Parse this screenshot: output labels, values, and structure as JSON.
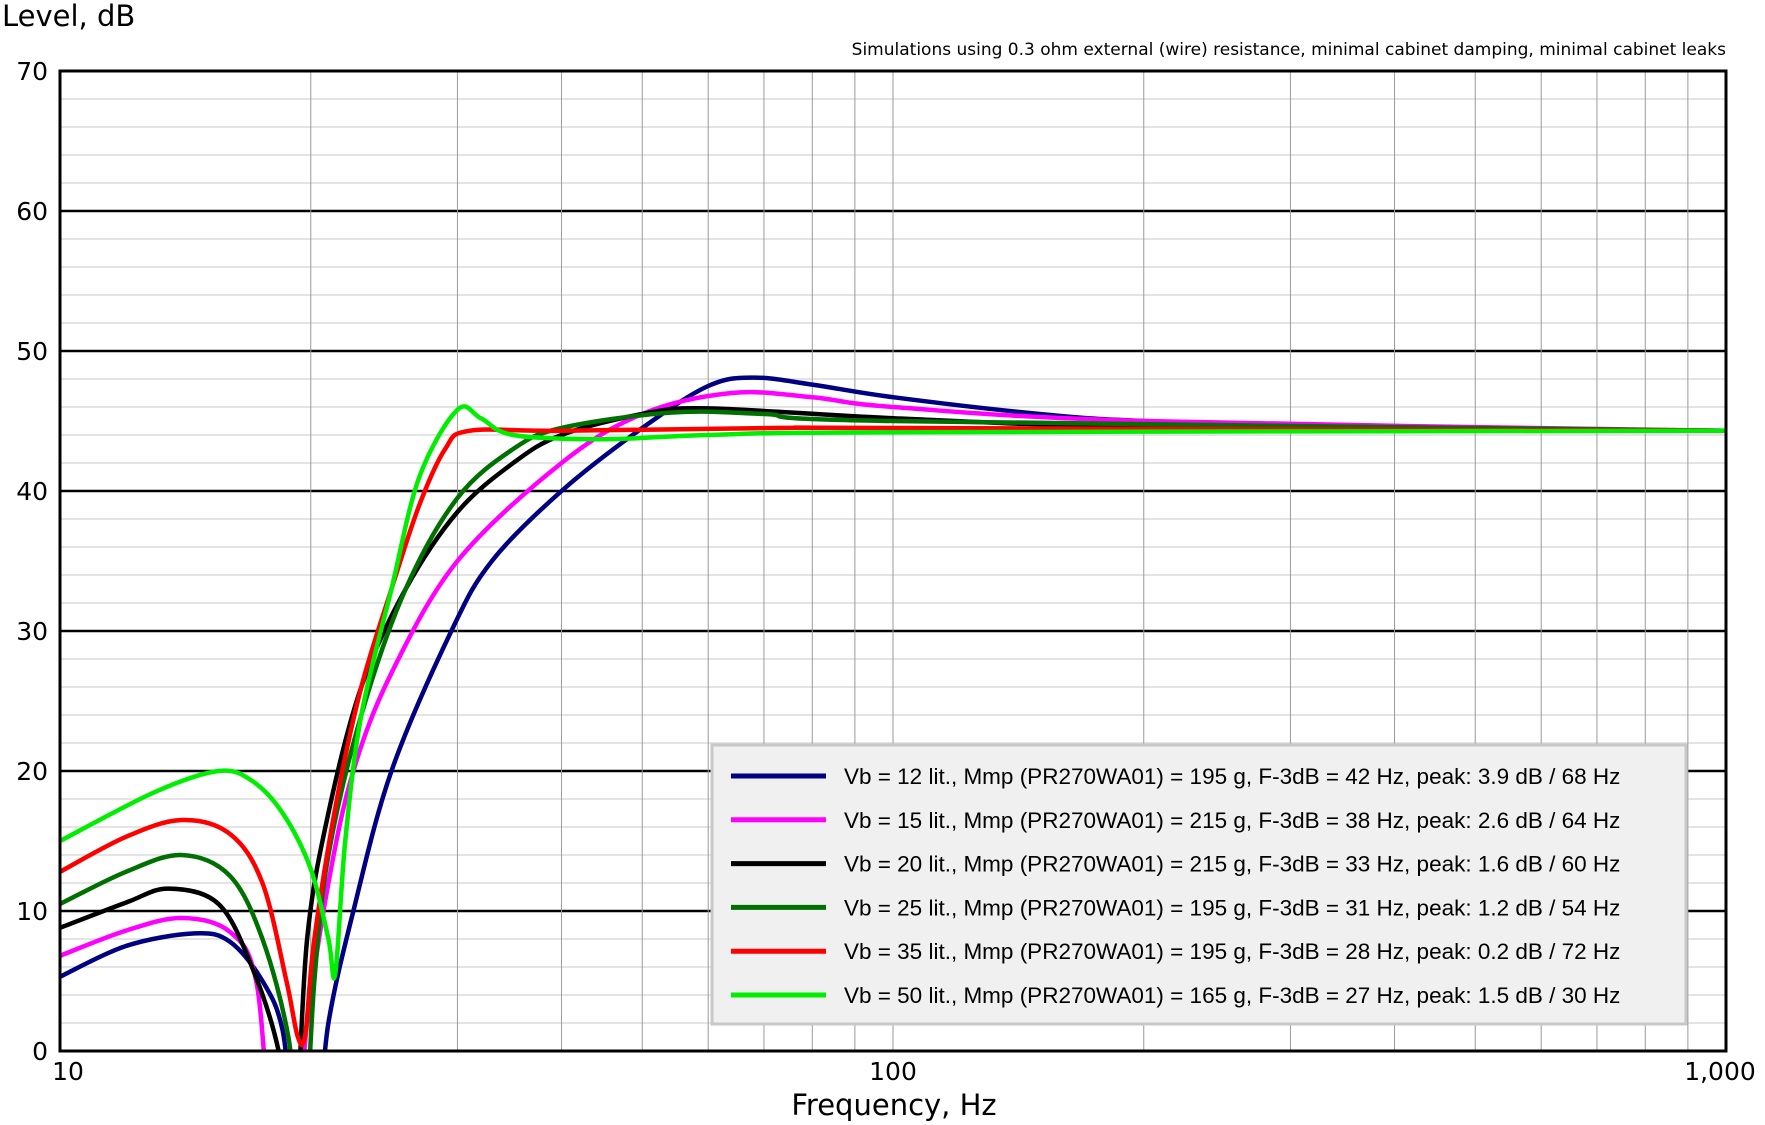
{
  "chart_data": {
    "type": "line",
    "title": "",
    "annotation": "Simulations using 0.3 ohm external (wire) resistance, minimal cabinet damping, minimal cabinet leaks",
    "xlabel": "Frequency, Hz",
    "ylabel": "Level, dB",
    "xscale": "log",
    "xlim": [
      10,
      1000
    ],
    "ylim": [
      0,
      70
    ],
    "x_ticks": [
      {
        "v": 10,
        "label": "10"
      },
      {
        "v": 100,
        "label": "100"
      },
      {
        "v": 1000,
        "label": "1,000"
      }
    ],
    "y_ticks": [
      {
        "v": 0,
        "label": "0"
      },
      {
        "v": 10,
        "label": "10"
      },
      {
        "v": 20,
        "label": "20"
      },
      {
        "v": 30,
        "label": "30"
      },
      {
        "v": 40,
        "label": "40"
      },
      {
        "v": 50,
        "label": "50"
      },
      {
        "v": 60,
        "label": "60"
      },
      {
        "v": 70,
        "label": "70"
      }
    ],
    "grid": true,
    "legend_position": "bottom-right",
    "series": [
      {
        "name": "Vb = 12 lit., Mmp (PR270WA01) = 195 g, F-3dB = 42 Hz, peak: 3.9 dB / 68 Hz",
        "color": "#000080",
        "points": [
          [
            10,
            5.3
          ],
          [
            12,
            7.5
          ],
          [
            14.5,
            8.4
          ],
          [
            16,
            7.8
          ],
          [
            17.5,
            5
          ],
          [
            18.5,
            1.5
          ],
          [
            19.2,
            -6
          ],
          [
            20.3,
            -6
          ],
          [
            21,
            2
          ],
          [
            22.5,
            10
          ],
          [
            25,
            20
          ],
          [
            29.5,
            30
          ],
          [
            33,
            35
          ],
          [
            40,
            40
          ],
          [
            50,
            44.5
          ],
          [
            60,
            47.5
          ],
          [
            68,
            48.1
          ],
          [
            80,
            47.6
          ],
          [
            100,
            46.7
          ],
          [
            150,
            45.5
          ],
          [
            200,
            45
          ],
          [
            400,
            44.5
          ],
          [
            1000,
            44.3
          ]
        ]
      },
      {
        "name": "Vb = 15 lit., Mmp (PR270WA01) = 215 g, F-3dB = 38 Hz, peak: 2.6 dB / 64 Hz",
        "color": "#ff00ff",
        "points": [
          [
            10,
            6.8
          ],
          [
            12,
            8.6
          ],
          [
            14,
            9.5
          ],
          [
            16,
            8.5
          ],
          [
            17.2,
            5
          ],
          [
            18,
            -6
          ],
          [
            19.2,
            -6
          ],
          [
            19.8,
            2
          ],
          [
            21,
            12
          ],
          [
            22.5,
            20
          ],
          [
            25,
            27
          ],
          [
            30,
            35
          ],
          [
            40,
            42
          ],
          [
            50,
            45.5
          ],
          [
            64,
            47
          ],
          [
            80,
            46.7
          ],
          [
            100,
            46
          ],
          [
            200,
            45
          ],
          [
            1000,
            44.3
          ]
        ]
      },
      {
        "name": "Vb = 20 lit., Mmp (PR270WA01) = 215 g, F-3dB = 33 Hz, peak: 1.6 dB / 60 Hz",
        "color": "#000000",
        "points": [
          [
            10,
            8.8
          ],
          [
            12,
            10.6
          ],
          [
            13.5,
            11.6
          ],
          [
            15.5,
            10.5
          ],
          [
            17,
            6
          ],
          [
            18.3,
            0
          ],
          [
            18.8,
            -6
          ],
          [
            19.2,
            -6
          ],
          [
            19.8,
            8
          ],
          [
            21,
            17
          ],
          [
            23,
            26
          ],
          [
            26,
            33
          ],
          [
            30,
            38.5
          ],
          [
            35,
            42
          ],
          [
            40,
            44
          ],
          [
            50,
            45.5
          ],
          [
            60,
            45.9
          ],
          [
            100,
            45.2
          ],
          [
            200,
            44.6
          ],
          [
            1000,
            44.3
          ]
        ]
      },
      {
        "name": "Vb = 25 lit., Mmp (PR270WA01) = 195 g, F-3dB = 31 Hz, peak: 1.2 dB / 54 Hz",
        "color": "#007000",
        "points": [
          [
            10,
            10.5
          ],
          [
            12,
            12.8
          ],
          [
            14,
            14
          ],
          [
            16,
            12.5
          ],
          [
            17.5,
            8
          ],
          [
            18.8,
            1
          ],
          [
            19.3,
            -6
          ],
          [
            19.7,
            -6
          ],
          [
            20.2,
            5
          ],
          [
            21,
            14
          ],
          [
            23,
            24
          ],
          [
            26,
            33
          ],
          [
            30,
            39.5
          ],
          [
            35,
            43
          ],
          [
            40,
            44.5
          ],
          [
            54,
            45.6
          ],
          [
            70,
            45.5
          ],
          [
            100,
            45
          ],
          [
            1000,
            44.3
          ]
        ]
      },
      {
        "name": "Vb = 35 lit., Mmp (PR270WA01) = 195 g, F-3dB = 28 Hz, peak: 0.2 dB / 72 Hz",
        "color": "#ff0000",
        "points": [
          [
            10,
            12.8
          ],
          [
            12,
            15.3
          ],
          [
            14,
            16.5
          ],
          [
            16,
            15.5
          ],
          [
            17.5,
            12
          ],
          [
            18.7,
            5
          ],
          [
            19.3,
            1
          ],
          [
            19.7,
            1.2
          ],
          [
            20.2,
            8
          ],
          [
            21.5,
            18
          ],
          [
            23,
            26
          ],
          [
            25,
            33
          ],
          [
            27,
            39
          ],
          [
            29,
            43
          ],
          [
            31,
            44.3
          ],
          [
            40,
            44.3
          ],
          [
            72,
            44.5
          ],
          [
            100,
            44.5
          ],
          [
            1000,
            44.3
          ]
        ]
      },
      {
        "name": "Vb = 50 lit., Mmp (PR270WA01) = 165 g, F-3dB = 27 Hz, peak: 1.5 dB / 30 Hz",
        "color": "#00ee00",
        "points": [
          [
            10,
            15
          ],
          [
            13,
            18.5
          ],
          [
            15.5,
            20
          ],
          [
            17,
            19.3
          ],
          [
            18.5,
            17
          ],
          [
            20,
            13
          ],
          [
            21,
            8
          ],
          [
            21.4,
            5.5
          ],
          [
            22,
            15
          ],
          [
            23,
            24
          ],
          [
            25,
            33
          ],
          [
            27,
            41
          ],
          [
            30,
            45.8
          ],
          [
            32,
            45.2
          ],
          [
            35,
            44
          ],
          [
            45,
            43.7
          ],
          [
            60,
            44
          ],
          [
            100,
            44.2
          ],
          [
            1000,
            44.3
          ]
        ]
      }
    ]
  }
}
